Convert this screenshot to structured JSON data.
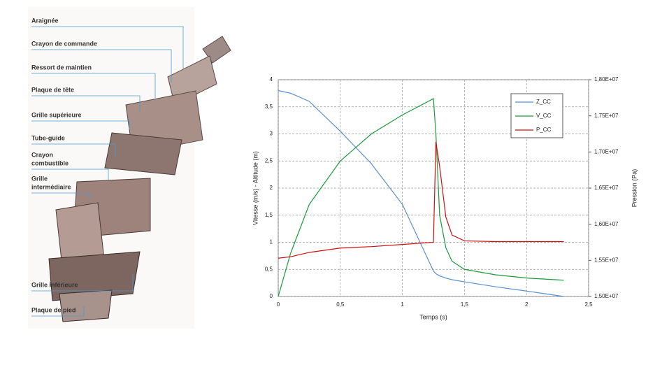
{
  "diagram": {
    "labels": [
      {
        "lines": [
          "Araignée"
        ]
      },
      {
        "lines": [
          "Crayon de commande"
        ]
      },
      {
        "lines": [
          "Ressort de maintien"
        ]
      },
      {
        "lines": [
          "Plaque de tête"
        ]
      },
      {
        "lines": [
          "Grille supérieure"
        ]
      },
      {
        "lines": [
          "Tube-guide"
        ]
      },
      {
        "lines": [
          "Crayon",
          "combustible"
        ]
      },
      {
        "lines": [
          "Grille",
          "intermédiaire"
        ]
      },
      {
        "lines": [
          "Grille inférieure"
        ]
      },
      {
        "lines": [
          "Plaque de pied"
        ]
      }
    ]
  },
  "chart_data": {
    "type": "line",
    "xlabel": "Temps (s)",
    "ylabel": "Vitesse (m/s) - Altitude (m)",
    "y2label": "Pression (Pa)",
    "x": [
      0,
      0.1,
      0.25,
      0.5,
      0.75,
      1.0,
      1.25,
      1.27,
      1.3,
      1.35,
      1.4,
      1.5,
      1.75,
      2.0,
      2.3
    ],
    "series": [
      {
        "name": "Z_CC",
        "color": "#5b8fd0",
        "values": [
          3.8,
          3.75,
          3.6,
          3.05,
          2.45,
          1.7,
          0.47,
          0.42,
          0.38,
          0.34,
          0.31,
          0.27,
          0.18,
          0.1,
          0
        ]
      },
      {
        "name": "V_CC",
        "color": "#1a9a3a",
        "values": [
          0,
          0.8,
          1.7,
          2.5,
          3.0,
          3.35,
          3.65,
          3.0,
          1.5,
          0.9,
          0.65,
          0.5,
          0.4,
          0.34,
          0.3
        ]
      },
      {
        "name": "P_CC",
        "color": "#cc1010",
        "axis": "y2",
        "values": [
          15530000,
          15550000,
          15610000,
          15670000,
          15690000,
          15720000,
          15750000,
          17140000,
          16800000,
          16100000,
          15850000,
          15770000,
          15760000,
          15760000,
          15760000
        ]
      }
    ],
    "xlim": [
      0,
      2.5
    ],
    "xticks": [
      0,
      {
        "value": 0.5,
        "label": "0,5"
      },
      1,
      {
        "value": 1.5,
        "label": "1,5"
      },
      2,
      {
        "value": 2.5,
        "label": "2,5"
      }
    ],
    "ylim": [
      0,
      4
    ],
    "yticks": [
      0,
      {
        "value": 0.5,
        "label": "0,5"
      },
      1,
      {
        "value": 1.5,
        "label": "1,5"
      },
      2,
      {
        "value": 2.5,
        "label": "2,5"
      },
      3,
      {
        "value": 3.5,
        "label": "3,5"
      },
      4
    ],
    "y2lim": [
      15000000,
      18000000
    ],
    "y2ticks": [
      {
        "value": 15000000,
        "label": "1,50E+07"
      },
      {
        "value": 15500000,
        "label": "1,55E+07"
      },
      {
        "value": 16000000,
        "label": "1,60E+07"
      },
      {
        "value": 16500000,
        "label": "1,65E+07"
      },
      {
        "value": 17000000,
        "label": "1,70E+07"
      },
      {
        "value": 17500000,
        "label": "1,75E+07"
      },
      {
        "value": 18000000,
        "label": "1,80E+07"
      }
    ],
    "grid": true,
    "legend": "upper right"
  }
}
